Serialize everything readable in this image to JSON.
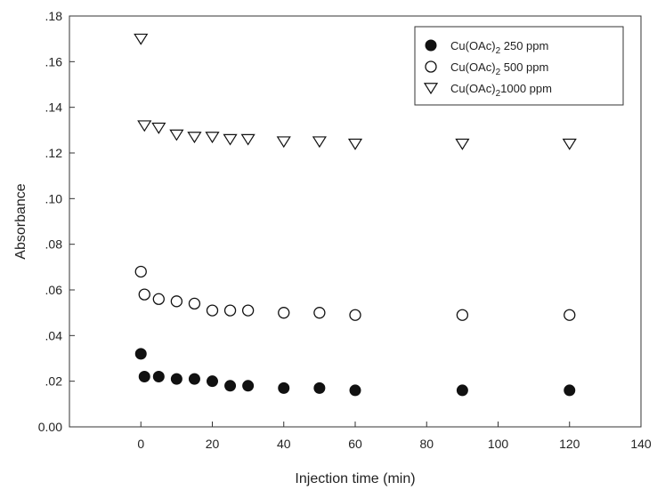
{
  "chart_data": {
    "type": "scatter",
    "xlabel": "Injection time (min)",
    "ylabel": "Absorbance",
    "xlim": [
      -20,
      140
    ],
    "ylim": [
      0,
      0.18
    ],
    "x_ticks": [
      0,
      20,
      40,
      60,
      80,
      100,
      120,
      140
    ],
    "x_tick_labels": [
      "0",
      "20",
      "40",
      "60",
      "80",
      "100",
      "120",
      "140"
    ],
    "y_ticks": [
      0,
      0.02,
      0.04,
      0.06,
      0.08,
      0.1,
      0.12,
      0.14,
      0.16,
      0.18
    ],
    "y_tick_labels": [
      "0.00",
      ".02",
      ".04",
      ".06",
      ".08",
      ".10",
      ".12",
      ".14",
      ".16",
      ".18"
    ],
    "grid": false,
    "legend_position": "top-right",
    "series": [
      {
        "name": "Cu(OAc)2 250 ppm",
        "legend_parts": {
          "pre": "Cu(OAc)",
          "sub": "2",
          "post": " 250 ppm"
        },
        "marker": "filled-circle",
        "color": "#111111",
        "x": [
          0,
          1,
          5,
          10,
          15,
          20,
          25,
          30,
          40,
          50,
          60,
          90,
          120
        ],
        "y": [
          0.032,
          0.022,
          0.022,
          0.021,
          0.021,
          0.02,
          0.018,
          0.018,
          0.017,
          0.017,
          0.016,
          0.016,
          0.016
        ]
      },
      {
        "name": "Cu(OAc)2 500 ppm",
        "legend_parts": {
          "pre": "Cu(OAc)",
          "sub": "2",
          "post": " 500 ppm"
        },
        "marker": "open-circle",
        "color": "#111111",
        "x": [
          0,
          1,
          5,
          10,
          15,
          20,
          25,
          30,
          40,
          50,
          60,
          90,
          120
        ],
        "y": [
          0.068,
          0.058,
          0.056,
          0.055,
          0.054,
          0.051,
          0.051,
          0.051,
          0.05,
          0.05,
          0.049,
          0.049,
          0.049
        ]
      },
      {
        "name": "Cu(OAc)2 1000 ppm",
        "legend_parts": {
          "pre": "Cu(OAc)",
          "sub": "2",
          "post": "1000 ppm"
        },
        "marker": "open-triangle-down",
        "color": "#111111",
        "x": [
          0,
          1,
          5,
          10,
          15,
          20,
          25,
          30,
          40,
          50,
          60,
          90,
          120
        ],
        "y": [
          0.17,
          0.132,
          0.131,
          0.128,
          0.127,
          0.127,
          0.126,
          0.126,
          0.125,
          0.125,
          0.124,
          0.124,
          0.124
        ]
      }
    ]
  }
}
